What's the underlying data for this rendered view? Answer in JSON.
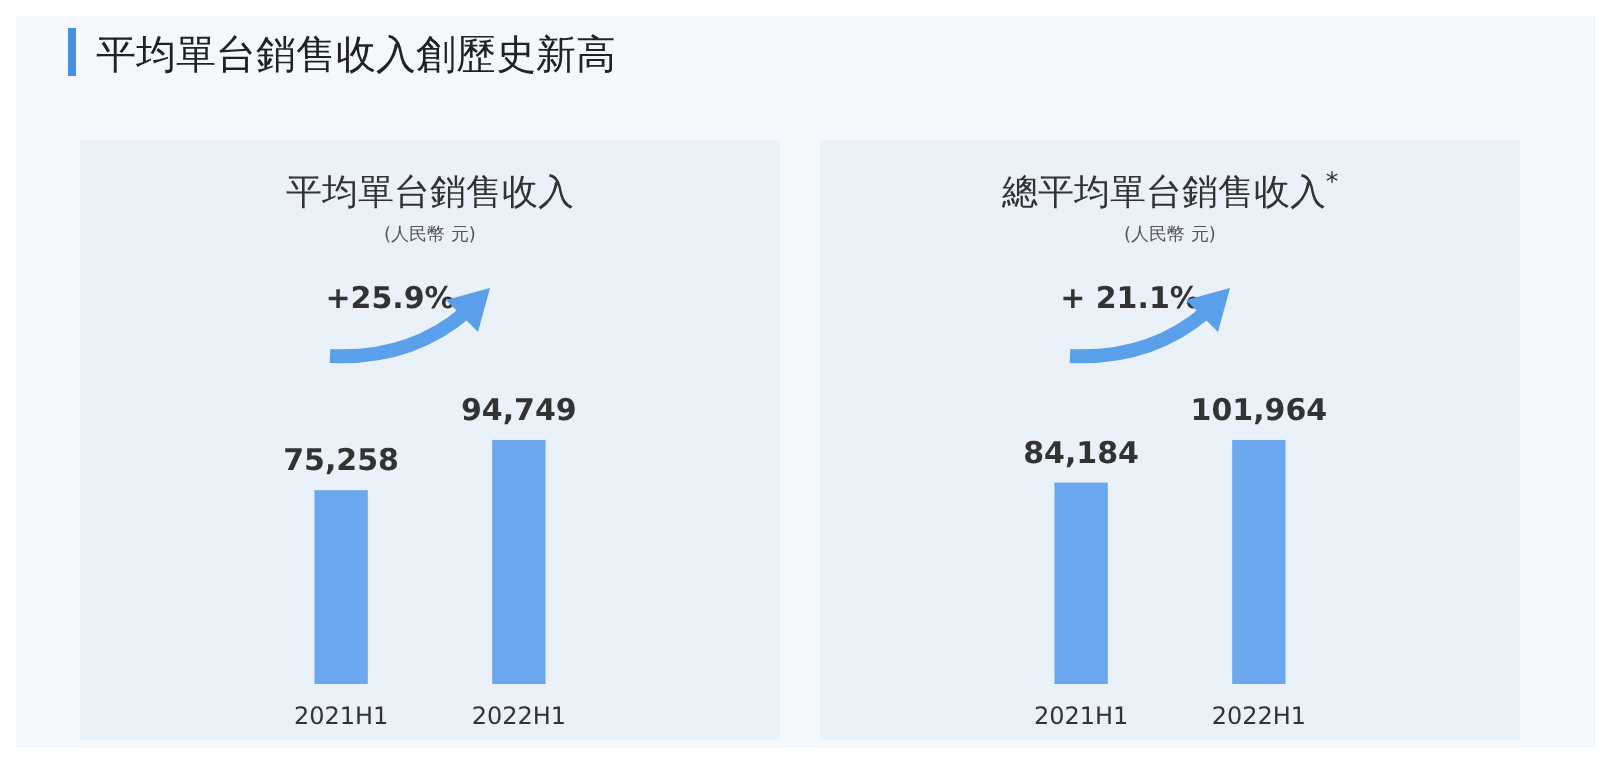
{
  "chart_data": [
    {
      "type": "bar",
      "title": "平均單台銷售收入",
      "subtitle": "(人民幣 元)",
      "categories": [
        "2021H1",
        "2022H1"
      ],
      "values": [
        75258,
        94749
      ],
      "value_labels": [
        "75,258",
        "94,749"
      ],
      "color": "#6aa7ef",
      "relative": false,
      "annotations": [
        "平均單台銷售收入創歷史新高",
        "+25.9%"
      ]
    },
    {
      "type": "bar",
      "title": "總平均單台銷售收入$^{*}$",
      "subtitle": "(人民幣 元)",
      "categories": [
        "2021H1",
        "2022H1"
      ],
      "values": [
        84184,
        101964
      ],
      "value_labels": [
        "84,184",
        "101,964"
      ],
      "color": "#6aa7ef",
      "relative": false,
      "annotations": [
        "+ 21.1%"
      ]
    }
  ]
}
